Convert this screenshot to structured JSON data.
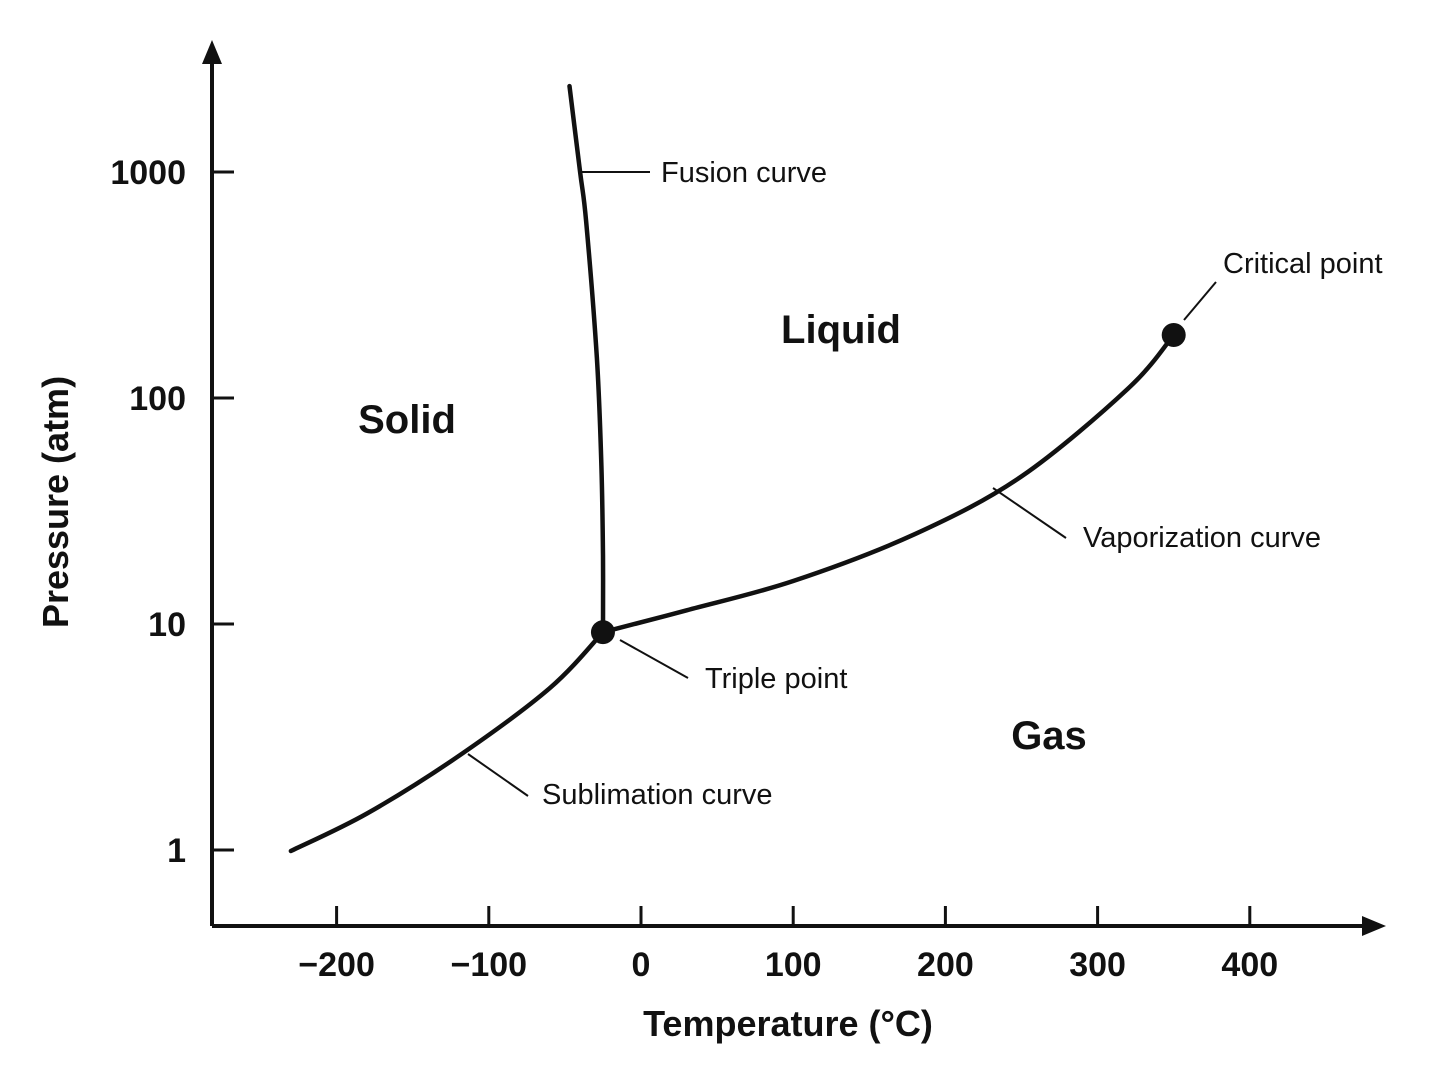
{
  "colors": {
    "ink": "#111111",
    "background": "#ffffff"
  },
  "axes": {
    "x_title": "Temperature (°C)",
    "y_title": "Pressure (atm)",
    "x_ticks": [
      {
        "value": -200,
        "label": "−200"
      },
      {
        "value": -100,
        "label": "−100"
      },
      {
        "value": 0,
        "label": "0"
      },
      {
        "value": 100,
        "label": "100"
      },
      {
        "value": 200,
        "label": "200"
      },
      {
        "value": 300,
        "label": "300"
      },
      {
        "value": 400,
        "label": "400"
      }
    ],
    "y_ticks": [
      {
        "value": 1,
        "label": "1"
      },
      {
        "value": 10,
        "label": "10"
      },
      {
        "value": 100,
        "label": "100"
      },
      {
        "value": 1000,
        "label": "1000"
      }
    ]
  },
  "regions": {
    "solid": "Solid",
    "liquid": "Liquid",
    "gas": "Gas"
  },
  "callouts": {
    "fusion": "Fusion curve",
    "critical": "Critical point",
    "vaporization": "Vaporization curve",
    "triple": "Triple point",
    "sublimation": "Sublimation curve"
  },
  "curves": {
    "fusion": [
      [
        -25,
        9.2
      ],
      [
        -25,
        20
      ],
      [
        -26,
        50
      ],
      [
        -29,
        150
      ],
      [
        -36,
        600
      ],
      [
        -40,
        1000
      ],
      [
        -47,
        2400
      ]
    ],
    "vaporization": [
      [
        -25,
        9.2
      ],
      [
        30,
        11.5
      ],
      [
        100,
        15.5
      ],
      [
        180,
        25
      ],
      [
        250,
        45
      ],
      [
        320,
        110
      ],
      [
        350,
        190
      ]
    ],
    "sublimation": [
      [
        -230,
        0.99
      ],
      [
        -180,
        1.45
      ],
      [
        -120,
        2.6
      ],
      [
        -60,
        5.2
      ],
      [
        -25,
        9.2
      ]
    ]
  },
  "points": {
    "triple": [
      -25,
      9.2
    ],
    "critical": [
      350,
      190
    ]
  }
}
